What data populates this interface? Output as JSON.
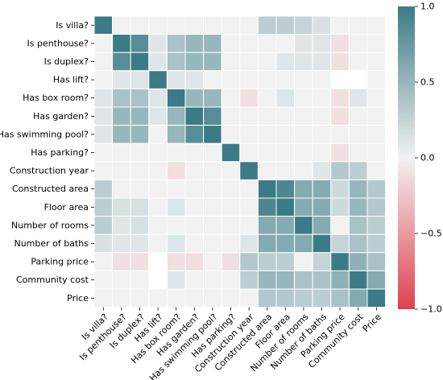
{
  "chart_data": {
    "type": "heatmap",
    "title": "",
    "xlabel": "",
    "ylabel": "",
    "labels": [
      "Is villa?",
      "Is penthouse?",
      "Is duplex?",
      "Has lift?",
      "Has box room?",
      "Has garden?",
      "Has swimming pool?",
      "Has parking?",
      "Construction year",
      "Constructed area",
      "Floor area",
      "Number of rooms",
      "Number of baths",
      "Parking price",
      "Community cost",
      "Price"
    ],
    "matrix": [
      [
        1.0,
        0.05,
        0.05,
        0.0,
        0.02,
        0.02,
        0.02,
        0.0,
        0.0,
        0.3,
        0.3,
        0.25,
        0.15,
        0.02,
        0.02,
        0.03
      ],
      [
        0.05,
        1.0,
        0.85,
        0.1,
        0.4,
        0.5,
        0.5,
        0.0,
        0.0,
        0.02,
        0.02,
        0.1,
        0.1,
        -0.1,
        0.02,
        0.02
      ],
      [
        0.05,
        0.85,
        1.0,
        0.1,
        0.4,
        0.5,
        0.5,
        0.0,
        0.0,
        0.02,
        0.1,
        0.1,
        0.1,
        -0.1,
        0.02,
        0.02
      ],
      [
        0.0,
        0.1,
        0.1,
        1.0,
        0.1,
        0.1,
        0.0,
        0.0,
        0.0,
        0.02,
        0.02,
        0.02,
        0.02,
        null,
        null,
        0.02
      ],
      [
        0.1,
        0.4,
        0.4,
        0.1,
        1.0,
        0.5,
        0.5,
        0.0,
        -0.1,
        0.02,
        0.1,
        0.02,
        0.05,
        -0.1,
        0.1,
        0.02
      ],
      [
        0.1,
        0.5,
        0.5,
        0.1,
        0.5,
        1.0,
        0.85,
        0.0,
        0.0,
        0.02,
        0.02,
        0.02,
        0.02,
        -0.1,
        0.02,
        0.02
      ],
      [
        0.1,
        0.5,
        0.5,
        0.0,
        0.5,
        0.85,
        1.0,
        0.0,
        0.0,
        0.02,
        0.02,
        0.02,
        0.02,
        0.02,
        0.02,
        0.02
      ],
      [
        0.0,
        0.0,
        0.0,
        0.0,
        0.0,
        0.0,
        0.0,
        1.0,
        0.0,
        0.0,
        0.0,
        0.0,
        0.0,
        -0.1,
        0.0,
        0.0
      ],
      [
        0.0,
        0.0,
        0.0,
        0.0,
        -0.1,
        0.0,
        0.0,
        0.0,
        1.0,
        0.0,
        0.0,
        0.0,
        0.1,
        0.35,
        0.3,
        0.05
      ],
      [
        0.3,
        0.05,
        0.05,
        0.0,
        0.02,
        0.02,
        0.02,
        0.0,
        0.0,
        1.0,
        0.9,
        0.6,
        0.6,
        0.2,
        0.5,
        0.35
      ],
      [
        0.3,
        0.15,
        0.15,
        0.0,
        0.1,
        0.02,
        0.02,
        0.0,
        0.0,
        0.9,
        1.0,
        0.6,
        0.6,
        0.2,
        0.5,
        0.35
      ],
      [
        0.3,
        0.1,
        0.15,
        0.0,
        0.02,
        0.02,
        0.02,
        0.0,
        0.0,
        0.6,
        0.6,
        1.0,
        0.6,
        0.02,
        0.4,
        0.3
      ],
      [
        0.15,
        0.1,
        0.1,
        0.0,
        0.1,
        0.02,
        0.02,
        0.0,
        0.1,
        0.6,
        0.6,
        0.6,
        1.0,
        0.25,
        0.4,
        0.3
      ],
      [
        0.02,
        -0.1,
        -0.1,
        null,
        -0.1,
        -0.1,
        0.02,
        -0.1,
        0.35,
        0.3,
        0.3,
        0.02,
        0.25,
        1.0,
        0.55,
        0.4
      ],
      [
        0.02,
        0.02,
        0.02,
        null,
        0.1,
        0.02,
        0.02,
        0.0,
        0.3,
        0.5,
        0.5,
        0.4,
        0.4,
        0.55,
        1.0,
        0.6
      ],
      [
        0.02,
        0.02,
        0.02,
        0.02,
        0.02,
        0.02,
        0.02,
        0.0,
        0.05,
        0.35,
        0.35,
        0.3,
        0.3,
        0.4,
        0.6,
        1.0
      ]
    ],
    "vmin": -1.0,
    "vmax": 1.0,
    "colorbar_ticks": [
      1.0,
      0.5,
      0.0,
      -0.5,
      -1.0
    ],
    "colorbar_tick_labels": [
      "1.0",
      "0.5",
      "0.0",
      "−0.5",
      "−1.0"
    ],
    "colors": {
      "negative": "#e0414f",
      "center": "#f2f2f2",
      "positive": "#3b7b86",
      "grid": "#ffffff",
      "missing": "#ffffff"
    },
    "grid": true,
    "legend": "right (colorbar)"
  }
}
